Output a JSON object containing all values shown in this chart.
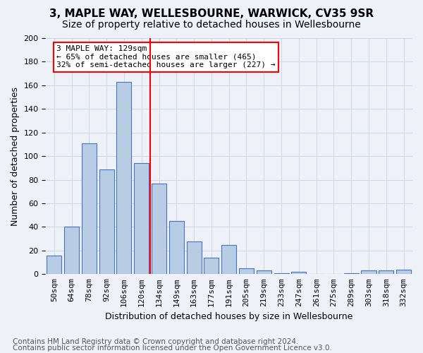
{
  "title1": "3, MAPLE WAY, WELLESBOURNE, WARWICK, CV35 9SR",
  "title2": "Size of property relative to detached houses in Wellesbourne",
  "xlabel": "Distribution of detached houses by size in Wellesbourne",
  "ylabel": "Number of detached properties",
  "categories": [
    "50sqm",
    "64sqm",
    "78sqm",
    "92sqm",
    "106sqm",
    "120sqm",
    "134sqm",
    "149sqm",
    "163sqm",
    "177sqm",
    "191sqm",
    "205sqm",
    "219sqm",
    "233sqm",
    "247sqm",
    "261sqm",
    "275sqm",
    "289sqm",
    "303sqm",
    "318sqm",
    "332sqm"
  ],
  "values": [
    16,
    40,
    111,
    89,
    163,
    94,
    77,
    45,
    28,
    14,
    25,
    5,
    3,
    1,
    2,
    0,
    0,
    1,
    3,
    3,
    4
  ],
  "bar_color": "#b8cce4",
  "bar_edge_color": "#4472c4",
  "grid_color": "#d0d8e8",
  "background_color": "#eef2f8",
  "vline_x": 5.5,
  "vline_color": "red",
  "annotation_text": "3 MAPLE WAY: 129sqm\n← 65% of detached houses are smaller (465)\n32% of semi-detached houses are larger (227) →",
  "annotation_box_color": "white",
  "annotation_box_edge_color": "red",
  "ylim": [
    0,
    200
  ],
  "yticks": [
    0,
    20,
    40,
    60,
    80,
    100,
    120,
    140,
    160,
    180,
    200
  ],
  "footnote1": "Contains HM Land Registry data © Crown copyright and database right 2024.",
  "footnote2": "Contains public sector information licensed under the Open Government Licence v3.0.",
  "title1_fontsize": 11,
  "title2_fontsize": 10,
  "axis_label_fontsize": 9,
  "tick_fontsize": 8,
  "footnote_fontsize": 7.5
}
